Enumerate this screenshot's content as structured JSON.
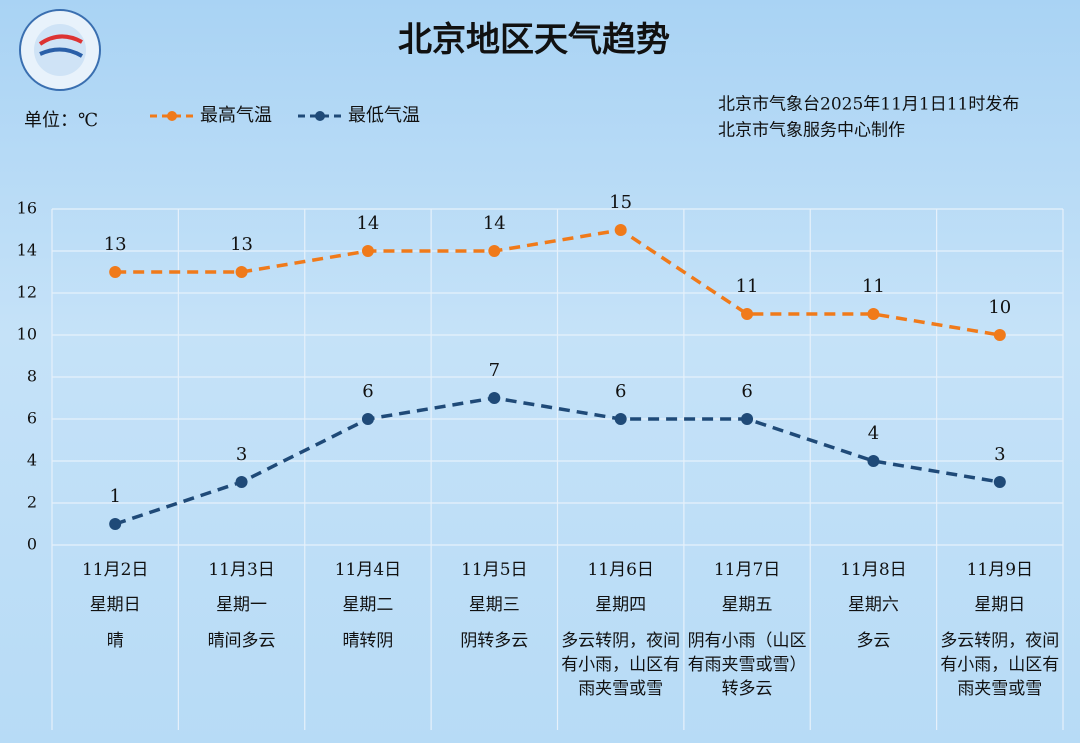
{
  "chart_data": {
    "type": "line",
    "title": "北京地区天气趋势",
    "unit_label": "单位：℃",
    "notes": [
      "北京市气象台2025年11月1日11时发布",
      "北京市气象服务中心制作"
    ],
    "categories": [
      "11月2日",
      "11月3日",
      "11月4日",
      "11月5日",
      "11月6日",
      "11月7日",
      "11月8日",
      "11月9日"
    ],
    "weekdays": [
      "星期日",
      "星期一",
      "星期二",
      "星期三",
      "星期四",
      "星期五",
      "星期六",
      "星期日"
    ],
    "weather": [
      "晴",
      "晴间多云",
      "晴转阴",
      "阴转多云",
      "多云转阴，夜间有小雨，山区有雨夹雪或雪",
      "阴有小雨（山区有雨夹雪或雪）转多云",
      "多云",
      "多云转阴，夜间有小雨，山区有雨夹雪或雪"
    ],
    "series": [
      {
        "name": "最高气温",
        "color": "#f07a1a",
        "values": [
          13,
          13,
          14,
          14,
          15,
          11,
          11,
          10
        ]
      },
      {
        "name": "最低气温",
        "color": "#1f4a78",
        "values": [
          1,
          3,
          6,
          7,
          6,
          6,
          4,
          3
        ]
      }
    ],
    "ylim": [
      0,
      16
    ],
    "yticks": [
      0,
      2,
      4,
      6,
      8,
      10,
      12,
      14,
      16
    ],
    "grid": true
  }
}
